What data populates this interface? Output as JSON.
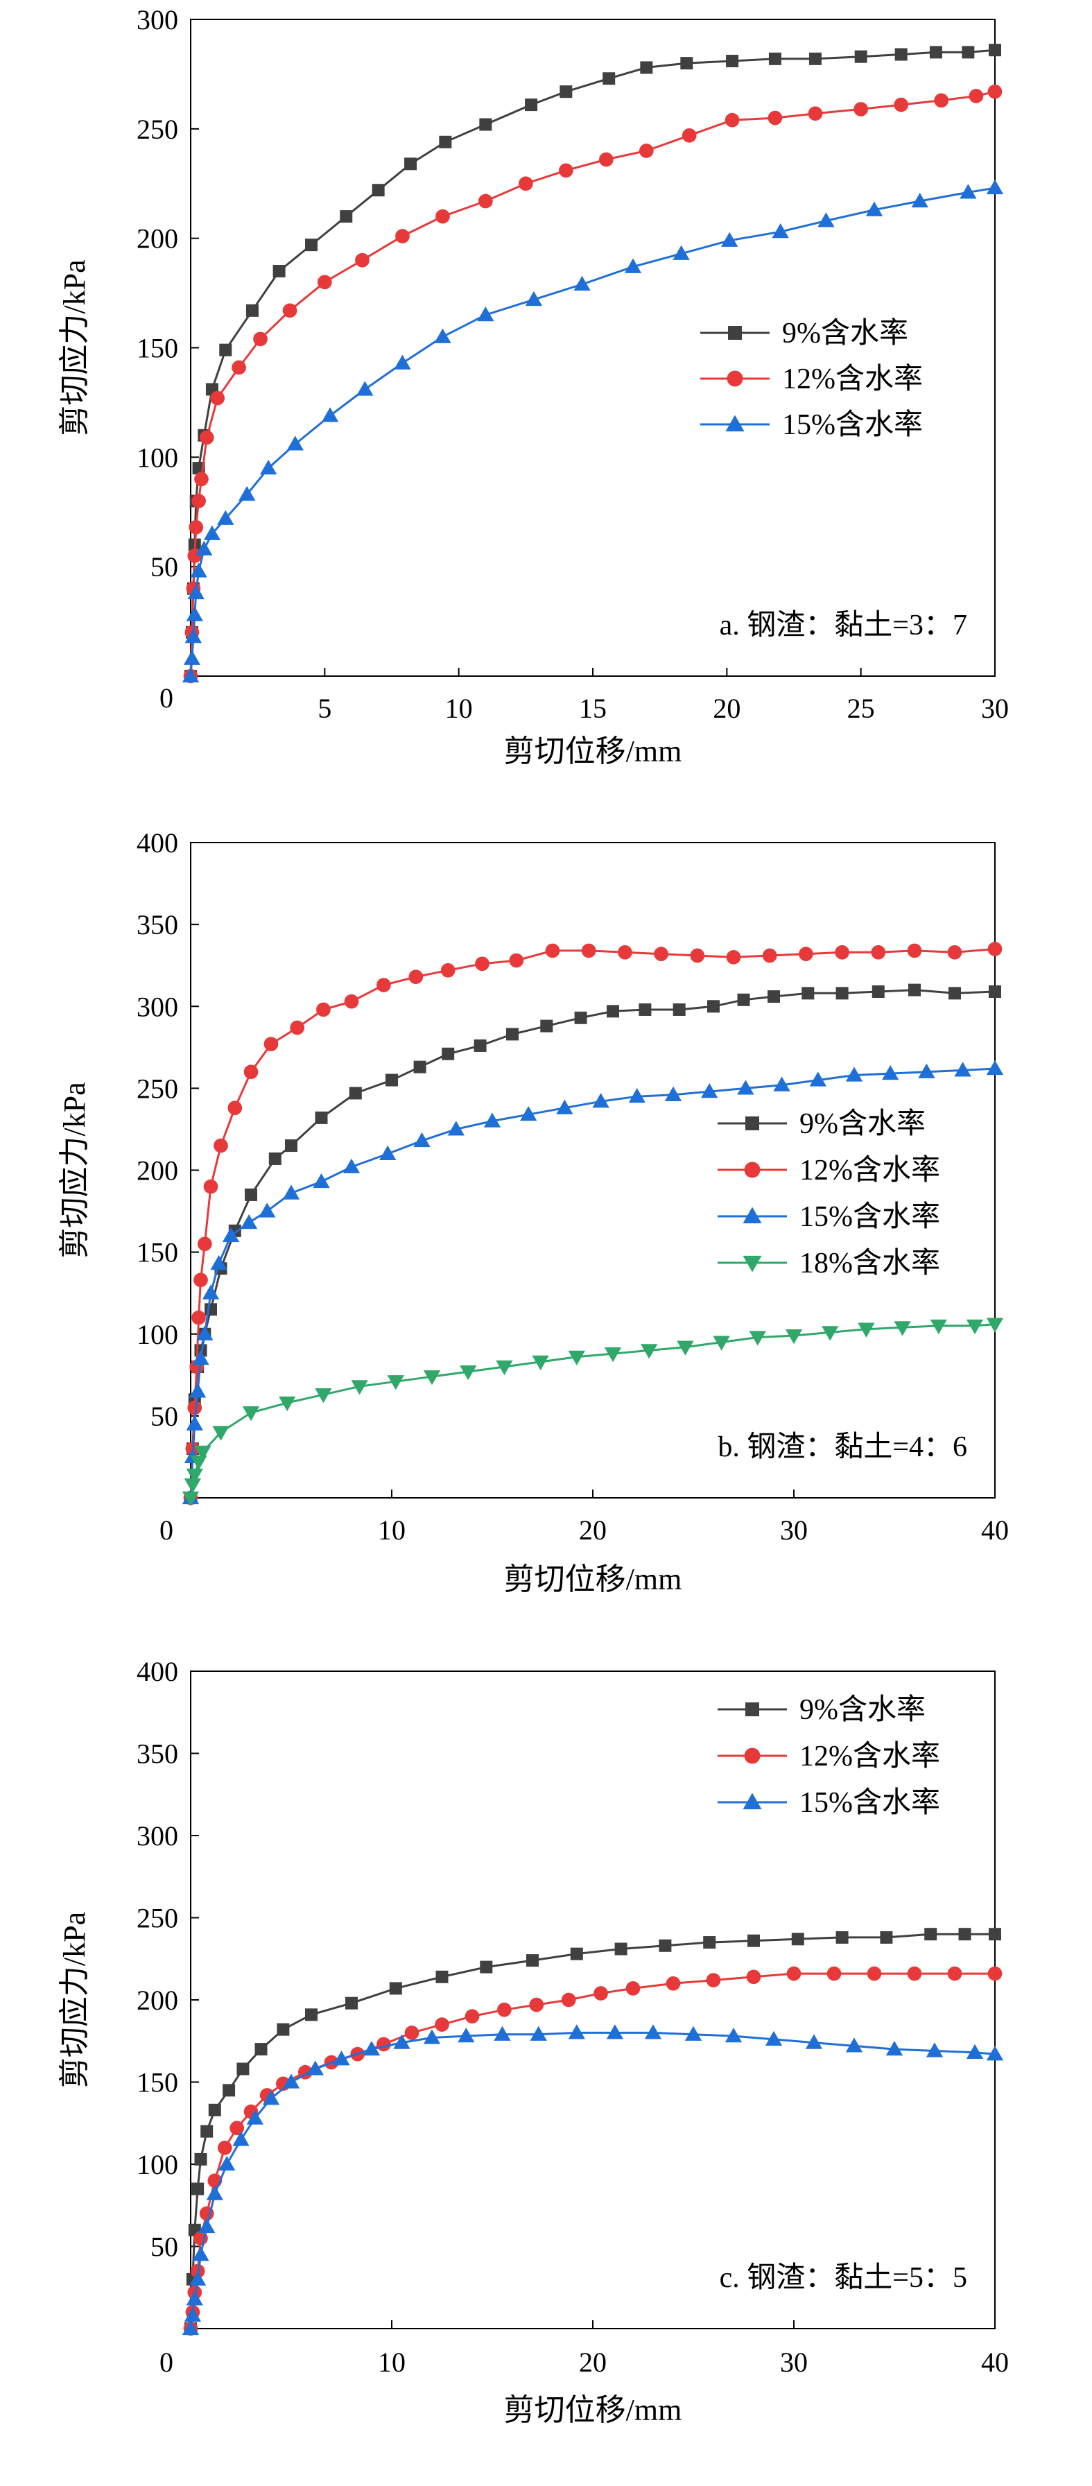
{
  "chart_data": [
    {
      "type": "line",
      "annotation": "a. 钢渣：黏土=3：7",
      "xlabel": "剪切位移/mm",
      "ylabel": "剪切应力/kPa",
      "xlim": [
        0,
        30
      ],
      "ylim": [
        0,
        300
      ],
      "xticks": [
        0,
        5,
        10,
        15,
        20,
        25,
        30
      ],
      "yticks": [
        50,
        100,
        150,
        200,
        250,
        300
      ],
      "y_zero_label": "0",
      "legend_position": "middle-right",
      "series": [
        {
          "name": "9%含水率",
          "color": "#404040",
          "marker": "square",
          "x": [
            0,
            0.05,
            0.1,
            0.15,
            0.2,
            0.3,
            0.5,
            0.8,
            1.3,
            2.3,
            3.3,
            4.5,
            5.8,
            7.0,
            8.2,
            9.5,
            11.0,
            12.7,
            14.0,
            15.6,
            17.0,
            18.5,
            20.2,
            21.8,
            23.3,
            25.0,
            26.5,
            27.8,
            29.0,
            30.0
          ],
          "y": [
            0,
            20,
            40,
            60,
            80,
            95,
            110,
            131,
            149,
            167,
            185,
            197,
            210,
            222,
            234,
            244,
            252,
            261,
            267,
            273,
            278,
            280,
            281,
            282,
            282,
            283,
            284,
            285,
            285,
            286
          ]
        },
        {
          "name": "12%含水率",
          "color": "#e8393a",
          "marker": "circle",
          "x": [
            0,
            0.05,
            0.1,
            0.15,
            0.2,
            0.3,
            0.4,
            0.6,
            1.0,
            1.8,
            2.6,
            3.7,
            5.0,
            6.4,
            7.9,
            9.4,
            11.0,
            12.5,
            14.0,
            15.5,
            17.0,
            18.6,
            20.2,
            21.8,
            23.3,
            25.0,
            26.5,
            28.0,
            29.3,
            30.0
          ],
          "y": [
            0,
            20,
            40,
            55,
            68,
            80,
            90,
            109,
            127,
            141,
            154,
            167,
            180,
            190,
            201,
            210,
            217,
            225,
            231,
            236,
            240,
            247,
            254,
            255,
            257,
            259,
            261,
            263,
            265,
            267
          ]
        },
        {
          "name": "15%含水率",
          "color": "#1f6fd8",
          "marker": "triangle",
          "x": [
            0,
            0.05,
            0.1,
            0.15,
            0.2,
            0.3,
            0.5,
            0.8,
            1.3,
            2.1,
            2.9,
            3.9,
            5.2,
            6.5,
            7.9,
            9.4,
            11.0,
            12.8,
            14.6,
            16.5,
            18.3,
            20.1,
            22.0,
            23.7,
            25.5,
            27.2,
            29.0,
            30.0
          ],
          "y": [
            0,
            8,
            18,
            28,
            38,
            48,
            58,
            65,
            72,
            83,
            95,
            106,
            119,
            131,
            143,
            155,
            165,
            172,
            179,
            187,
            193,
            199,
            203,
            208,
            213,
            217,
            221,
            223
          ]
        }
      ]
    },
    {
      "type": "line",
      "annotation": "b. 钢渣：黏土=4：6",
      "xlabel": "剪切位移/mm",
      "ylabel": "剪切应力/kPa",
      "xlim": [
        0,
        40
      ],
      "ylim": [
        0,
        400
      ],
      "xticks": [
        10,
        20,
        30,
        40
      ],
      "yticks": [
        50,
        100,
        150,
        200,
        250,
        300,
        350,
        400
      ],
      "y_zero_label": "0",
      "legend_position": "middle-right",
      "series": [
        {
          "name": "9%含水率",
          "color": "#404040",
          "marker": "square",
          "x": [
            0,
            0.1,
            0.2,
            0.35,
            0.5,
            0.7,
            1.0,
            1.5,
            2.2,
            3.0,
            4.2,
            5.0,
            6.5,
            8.2,
            10.0,
            11.4,
            12.8,
            14.4,
            16.0,
            17.7,
            19.4,
            21.0,
            22.6,
            24.3,
            26.0,
            27.5,
            29.0,
            30.7,
            32.4,
            34.2,
            36.0,
            38.0,
            40.0
          ],
          "y": [
            0,
            30,
            60,
            80,
            90,
            100,
            115,
            140,
            163,
            185,
            207,
            215,
            232,
            247,
            255,
            263,
            271,
            276,
            283,
            288,
            293,
            297,
            298,
            298,
            300,
            304,
            306,
            308,
            308,
            309,
            310,
            308,
            309
          ]
        },
        {
          "name": "12%含水率",
          "color": "#e8393a",
          "marker": "circle",
          "x": [
            0,
            0.1,
            0.2,
            0.3,
            0.4,
            0.5,
            0.7,
            1.0,
            1.5,
            2.2,
            3.0,
            4.0,
            5.3,
            6.6,
            8.0,
            9.6,
            11.2,
            12.8,
            14.5,
            16.2,
            18.0,
            19.8,
            21.6,
            23.4,
            25.2,
            27.0,
            28.8,
            30.6,
            32.4,
            34.2,
            36.0,
            38.0,
            40.0
          ],
          "y": [
            0,
            30,
            55,
            80,
            110,
            133,
            155,
            190,
            215,
            238,
            260,
            277,
            287,
            298,
            303,
            313,
            318,
            322,
            326,
            328,
            334,
            334,
            333,
            332,
            331,
            330,
            331,
            332,
            333,
            333,
            334,
            333,
            335
          ]
        },
        {
          "name": "15%含水率",
          "color": "#1f6fd8",
          "marker": "triangle",
          "x": [
            0,
            0.1,
            0.2,
            0.35,
            0.5,
            0.7,
            1.0,
            1.4,
            2.0,
            2.9,
            3.8,
            5.0,
            6.5,
            8.0,
            9.8,
            11.5,
            13.2,
            15.0,
            16.8,
            18.6,
            20.4,
            22.2,
            24.0,
            25.8,
            27.6,
            29.4,
            31.2,
            33.0,
            34.8,
            36.6,
            38.4,
            40.0
          ],
          "y": [
            0,
            25,
            45,
            65,
            85,
            100,
            125,
            143,
            160,
            168,
            175,
            186,
            193,
            202,
            210,
            218,
            225,
            230,
            234,
            238,
            242,
            245,
            246,
            248,
            250,
            252,
            255,
            258,
            259,
            260,
            261,
            262
          ]
        },
        {
          "name": "18%含水率",
          "color": "#2fa86a",
          "marker": "triangle-down",
          "x": [
            0,
            0.1,
            0.2,
            0.4,
            0.6,
            1.5,
            3.0,
            4.8,
            6.6,
            8.4,
            10.2,
            12.0,
            13.8,
            15.6,
            17.4,
            19.2,
            21.0,
            22.8,
            24.6,
            26.4,
            28.2,
            30.0,
            31.8,
            33.6,
            35.4,
            37.2,
            39.0,
            40.0
          ],
          "y": [
            0,
            8,
            14,
            22,
            28,
            40,
            52,
            58,
            63,
            68,
            71,
            74,
            77,
            80,
            83,
            86,
            88,
            90,
            92,
            95,
            98,
            99,
            101,
            103,
            104,
            105,
            105,
            106
          ]
        }
      ]
    },
    {
      "type": "line",
      "annotation": "c. 钢渣：黏土=5：5",
      "xlabel": "剪切位移/mm",
      "ylabel": "剪切应力/kPa",
      "xlim": [
        0,
        40
      ],
      "ylim": [
        0,
        400
      ],
      "xticks": [
        10,
        20,
        30,
        40
      ],
      "yticks": [
        50,
        100,
        150,
        200,
        250,
        300,
        350,
        400
      ],
      "y_zero_label": "0",
      "legend_position": "top-right",
      "series": [
        {
          "name": "9%含水率",
          "color": "#404040",
          "marker": "square",
          "x": [
            0,
            0.1,
            0.2,
            0.35,
            0.5,
            0.8,
            1.2,
            1.9,
            2.6,
            3.5,
            4.6,
            6.0,
            8.0,
            10.2,
            12.5,
            14.7,
            17.0,
            19.2,
            21.4,
            23.6,
            25.8,
            28.0,
            30.2,
            32.4,
            34.6,
            36.8,
            38.5,
            40.0
          ],
          "y": [
            0,
            30,
            60,
            85,
            103,
            120,
            133,
            145,
            158,
            170,
            182,
            191,
            198,
            207,
            214,
            220,
            224,
            228,
            231,
            233,
            235,
            236,
            237,
            238,
            238,
            240,
            240,
            240
          ]
        },
        {
          "name": "12%含水率",
          "color": "#e8393a",
          "marker": "circle",
          "x": [
            0,
            0.1,
            0.2,
            0.35,
            0.5,
            0.8,
            1.2,
            1.7,
            2.3,
            3.0,
            3.8,
            4.6,
            5.7,
            7.0,
            8.3,
            9.6,
            11.0,
            12.5,
            14.0,
            15.6,
            17.2,
            18.8,
            20.4,
            22.0,
            24.0,
            26.0,
            28.0,
            30.0,
            32.0,
            34.0,
            36.0,
            38.0,
            40.0
          ],
          "y": [
            0,
            10,
            22,
            35,
            55,
            70,
            90,
            110,
            122,
            132,
            142,
            149,
            156,
            162,
            167,
            173,
            180,
            185,
            190,
            194,
            197,
            200,
            204,
            207,
            210,
            212,
            214,
            216,
            216,
            216,
            216,
            216,
            216
          ]
        },
        {
          "name": "15%含水率",
          "color": "#1f6fd8",
          "marker": "triangle",
          "x": [
            0,
            0.1,
            0.2,
            0.35,
            0.5,
            0.8,
            1.2,
            1.8,
            2.5,
            3.2,
            4.0,
            5.0,
            6.2,
            7.5,
            9.0,
            10.5,
            12.0,
            13.7,
            15.5,
            17.3,
            19.2,
            21.1,
            23.0,
            25.0,
            27.0,
            29.0,
            31.0,
            33.0,
            35.0,
            37.0,
            39.0,
            40.0
          ],
          "y": [
            0,
            8,
            18,
            30,
            45,
            62,
            82,
            100,
            115,
            128,
            140,
            150,
            158,
            164,
            170,
            174,
            177,
            178,
            179,
            179,
            180,
            180,
            180,
            179,
            178,
            176,
            174,
            172,
            170,
            169,
            168,
            167
          ]
        }
      ]
    }
  ]
}
